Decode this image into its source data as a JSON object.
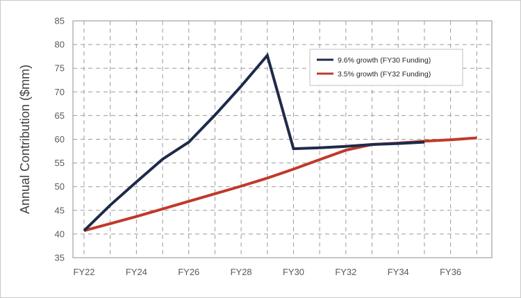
{
  "chart_data": {
    "type": "line",
    "title": "",
    "xlabel": "",
    "ylabel": "Annual Contribution ($mm)",
    "x": [
      "FY22",
      "FY23",
      "FY24",
      "FY25",
      "FY26",
      "FY27",
      "FY28",
      "FY29",
      "FY30",
      "FY31",
      "FY32",
      "FY33",
      "FY34",
      "FY35",
      "FY36",
      "FY37"
    ],
    "x_tick_labels": [
      "FY22",
      "FY24",
      "FY26",
      "FY28",
      "FY30",
      "FY32",
      "FY34",
      "FY36"
    ],
    "ylim": [
      35,
      85
    ],
    "y_ticks": [
      35,
      40,
      45,
      50,
      55,
      60,
      65,
      70,
      75,
      80,
      85
    ],
    "grid": true,
    "grid_style": "dashed",
    "legend_position": "top-right",
    "series": [
      {
        "name": "9.6% growth (FY30 Funding)",
        "color": "#1f2a4a",
        "x": [
          "FY22",
          "FY23",
          "FY24",
          "FY25",
          "FY26",
          "FY27",
          "FY28",
          "FY29",
          "FY30",
          "FY31",
          "FY32",
          "FY33",
          "FY34",
          "FY35"
        ],
        "values": [
          40.7,
          46.1,
          51.0,
          55.8,
          59.4,
          65.1,
          71.2,
          77.7,
          58.0,
          58.2,
          58.5,
          58.9,
          59.1,
          59.4
        ]
      },
      {
        "name": "3.5% growth (FY32 Funding)",
        "color": "#c0392b",
        "x": [
          "FY22",
          "FY23",
          "FY24",
          "FY25",
          "FY26",
          "FY27",
          "FY28",
          "FY29",
          "FY30",
          "FY31",
          "FY32",
          "FY33",
          "FY34",
          "FY35",
          "FY36",
          "FY37"
        ],
        "values": [
          40.7,
          42.2,
          43.7,
          45.3,
          46.9,
          48.5,
          50.1,
          51.8,
          53.7,
          55.7,
          57.7,
          58.9,
          59.2,
          59.6,
          59.9,
          60.3
        ]
      }
    ]
  }
}
